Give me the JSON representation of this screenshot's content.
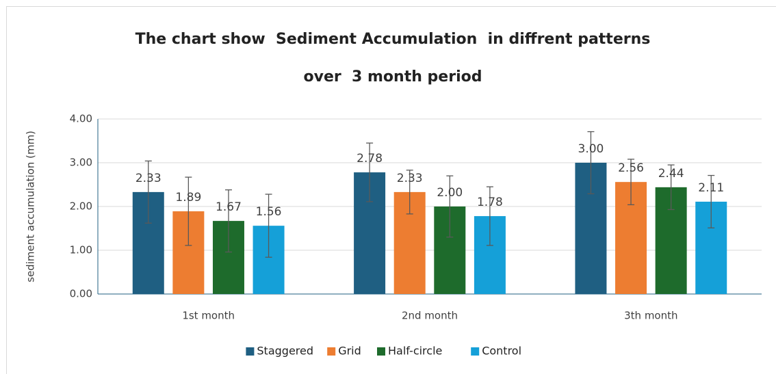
{
  "chart_data": {
    "type": "bar",
    "title": [
      "The chart show  Sediment Accumulation  in diffrent patterns",
      "over  3 month period"
    ],
    "y_label": "sediment accumulation (mm)",
    "categories": [
      "1st month",
      "2nd month",
      "3th month"
    ],
    "series": [
      {
        "name": "Staggered",
        "color": "#1f5f82",
        "values": [
          2.33,
          2.78,
          3.0
        ],
        "value_labels": [
          "2.33",
          "2.78",
          "3.00"
        ],
        "errors": [
          0.71,
          0.67,
          0.71
        ]
      },
      {
        "name": "Grid",
        "color": "#ed7d31",
        "values": [
          1.89,
          2.33,
          2.56
        ],
        "value_labels": [
          "1.89",
          "2.33",
          "2.56"
        ],
        "errors": [
          0.78,
          0.5,
          0.52
        ]
      },
      {
        "name": "Half-circle",
        "color": "#1e6b2c",
        "values": [
          1.67,
          2.0,
          2.44
        ],
        "value_labels": [
          "1.67",
          "2.00",
          "2.44"
        ],
        "errors": [
          0.71,
          0.7,
          0.51
        ]
      },
      {
        "name": "Control",
        "color": "#15a0d8",
        "values": [
          1.56,
          1.78,
          2.11
        ],
        "value_labels": [
          "1.56",
          "1.78",
          "2.11"
        ],
        "errors": [
          0.72,
          0.67,
          0.6
        ]
      }
    ],
    "ylim": [
      0,
      4
    ],
    "yticks": [
      {
        "value": 0,
        "label": "0.00"
      },
      {
        "value": 1,
        "label": "1.00"
      },
      {
        "value": 2,
        "label": "2.00"
      },
      {
        "value": 3,
        "label": "3.00"
      },
      {
        "value": 4,
        "label": "4.00"
      }
    ],
    "grid": true,
    "legend": "bottom"
  }
}
